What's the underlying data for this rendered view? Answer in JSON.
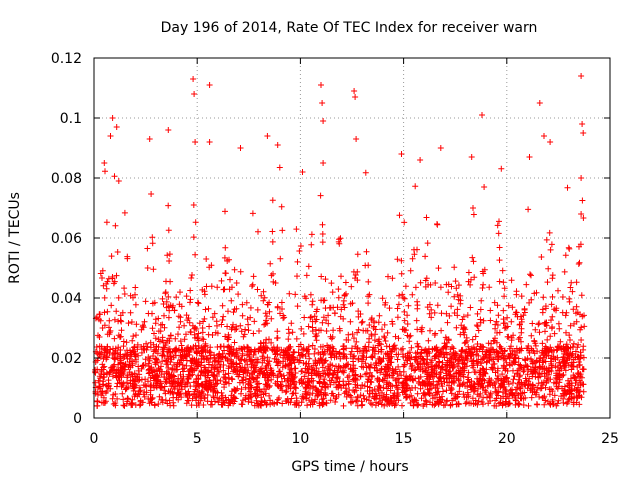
{
  "chart_data": {
    "type": "scatter",
    "title": "Day 196 of 2014, Rate Of TEC Index for receiver warn",
    "xlabel": "GPS time / hours",
    "ylabel": "ROTI / TECUs",
    "xlim": [
      0,
      25
    ],
    "ylim": [
      0,
      0.12
    ],
    "xticks": [
      0,
      5,
      10,
      15,
      20,
      25
    ],
    "yticks": [
      0,
      0.02,
      0.04,
      0.06,
      0.08,
      0.1,
      0.12
    ],
    "xtick_labels": [
      "0",
      "5",
      "10",
      "15",
      "20",
      "25"
    ],
    "ytick_labels": [
      "0",
      "0.02",
      "0.04",
      "0.06",
      "0.08",
      "0.1",
      "0.12"
    ],
    "grid": true,
    "marker": "+",
    "color": "#ff0000",
    "series": [
      {
        "name": "ROTI",
        "note": "dense scatter, baseline ~0.005-0.03 across 0-23.7 h; representative outliers listed below",
        "outliers": [
          {
            "x": 0.8,
            "y": 0.094
          },
          {
            "x": 0.9,
            "y": 0.1
          },
          {
            "x": 1.1,
            "y": 0.097
          },
          {
            "x": 0.5,
            "y": 0.085
          },
          {
            "x": 1.2,
            "y": 0.079
          },
          {
            "x": 2.7,
            "y": 0.093
          },
          {
            "x": 3.6,
            "y": 0.096
          },
          {
            "x": 4.8,
            "y": 0.113
          },
          {
            "x": 4.85,
            "y": 0.108
          },
          {
            "x": 4.9,
            "y": 0.092
          },
          {
            "x": 5.6,
            "y": 0.111
          },
          {
            "x": 5.6,
            "y": 0.092
          },
          {
            "x": 7.1,
            "y": 0.09
          },
          {
            "x": 8.4,
            "y": 0.094
          },
          {
            "x": 8.9,
            "y": 0.091
          },
          {
            "x": 10.1,
            "y": 0.082
          },
          {
            "x": 11.0,
            "y": 0.111
          },
          {
            "x": 11.05,
            "y": 0.105
          },
          {
            "x": 11.1,
            "y": 0.099
          },
          {
            "x": 11.1,
            "y": 0.085
          },
          {
            "x": 12.6,
            "y": 0.109
          },
          {
            "x": 12.65,
            "y": 0.107
          },
          {
            "x": 12.7,
            "y": 0.093
          },
          {
            "x": 14.9,
            "y": 0.088
          },
          {
            "x": 15.8,
            "y": 0.086
          },
          {
            "x": 16.8,
            "y": 0.09
          },
          {
            "x": 18.3,
            "y": 0.087
          },
          {
            "x": 18.8,
            "y": 0.101
          },
          {
            "x": 18.9,
            "y": 0.077
          },
          {
            "x": 21.1,
            "y": 0.087
          },
          {
            "x": 21.6,
            "y": 0.105
          },
          {
            "x": 21.8,
            "y": 0.094
          },
          {
            "x": 22.1,
            "y": 0.092
          },
          {
            "x": 23.6,
            "y": 0.114
          },
          {
            "x": 23.65,
            "y": 0.098
          },
          {
            "x": 23.7,
            "y": 0.095
          },
          {
            "x": 23.6,
            "y": 0.08
          },
          {
            "x": 23.6,
            "y": 0.068
          }
        ]
      }
    ]
  }
}
